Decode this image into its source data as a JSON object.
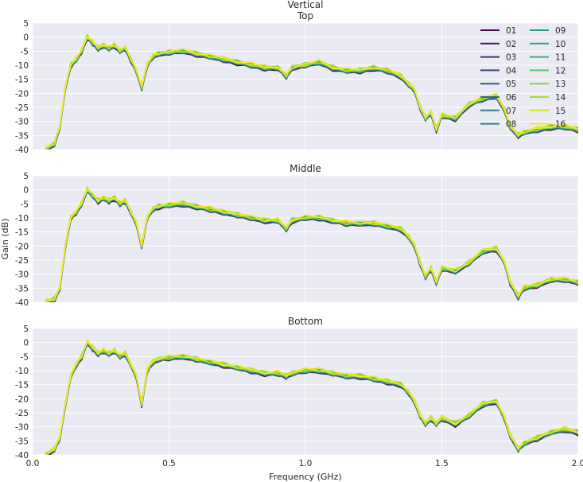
{
  "chart_data": {
    "type": "line",
    "suptitle": "Vertical",
    "xlabel": "Frequency (GHz)",
    "ylabel": "Gain (dB)",
    "xlim": [
      0.0,
      2.0
    ],
    "ylim": [
      -40,
      5
    ],
    "x_ticks": [
      "0.0",
      "0.5",
      "1.0",
      "1.5",
      "2.0"
    ],
    "x_tick_values": [
      0.0,
      0.5,
      1.0,
      1.5,
      2.0
    ],
    "y_ticks": [
      "5",
      "0",
      "-5",
      "-10",
      "-15",
      "-20",
      "-25",
      "-30",
      "-35",
      "-40"
    ],
    "y_tick_values": [
      5,
      0,
      -5,
      -10,
      -15,
      -20,
      -25,
      -30,
      -35,
      -40
    ],
    "grid": true,
    "legend": {
      "placement": "top-right",
      "columns": 2
    },
    "series_names": [
      "01",
      "02",
      "03",
      "04",
      "05",
      "06",
      "07",
      "08",
      "09",
      "10",
      "11",
      "12",
      "13",
      "14",
      "15",
      "16"
    ],
    "series_colors": [
      "#440154",
      "#481A6C",
      "#472F7D",
      "#414487",
      "#39568C",
      "#31688E",
      "#2A788E",
      "#23888E",
      "#1F988B",
      "#22A884",
      "#35B779",
      "#54C568",
      "#7AD151",
      "#A5DB36",
      "#D2E21B",
      "#FDE725"
    ],
    "panels": [
      {
        "title": "Top",
        "x": [
          0.05,
          0.08,
          0.1,
          0.12,
          0.14,
          0.16,
          0.18,
          0.2,
          0.22,
          0.24,
          0.26,
          0.28,
          0.3,
          0.32,
          0.34,
          0.36,
          0.38,
          0.4,
          0.42,
          0.44,
          0.46,
          0.5,
          0.55,
          0.6,
          0.65,
          0.7,
          0.75,
          0.8,
          0.85,
          0.9,
          0.93,
          0.95,
          1.0,
          1.05,
          1.1,
          1.15,
          1.2,
          1.25,
          1.3,
          1.35,
          1.38,
          1.4,
          1.42,
          1.44,
          1.46,
          1.48,
          1.5,
          1.55,
          1.6,
          1.65,
          1.7,
          1.73,
          1.75,
          1.78,
          1.8,
          1.85,
          1.9,
          1.95,
          2.0
        ],
        "y": [
          -40,
          -38,
          -32,
          -18,
          -10,
          -8,
          -5,
          0,
          -2,
          -4,
          -3,
          -4,
          -3,
          -5,
          -4,
          -8,
          -12,
          -18,
          -10,
          -7,
          -6,
          -5.5,
          -5,
          -6,
          -7,
          -8,
          -9,
          -10,
          -11,
          -11,
          -14,
          -11,
          -10,
          -9,
          -11,
          -12,
          -12,
          -11,
          -12,
          -14,
          -17,
          -19,
          -25,
          -29,
          -27,
          -33,
          -28,
          -29,
          -24,
          -22,
          -21,
          -26,
          -32,
          -35,
          -34,
          -33,
          -32,
          -32,
          -33
        ]
      },
      {
        "title": "Middle",
        "x": [
          0.05,
          0.08,
          0.1,
          0.12,
          0.14,
          0.16,
          0.18,
          0.2,
          0.22,
          0.24,
          0.26,
          0.28,
          0.3,
          0.32,
          0.34,
          0.36,
          0.38,
          0.4,
          0.42,
          0.44,
          0.46,
          0.5,
          0.55,
          0.6,
          0.65,
          0.7,
          0.75,
          0.8,
          0.85,
          0.9,
          0.93,
          0.95,
          1.0,
          1.05,
          1.1,
          1.15,
          1.2,
          1.25,
          1.3,
          1.35,
          1.38,
          1.4,
          1.42,
          1.44,
          1.46,
          1.48,
          1.5,
          1.55,
          1.6,
          1.65,
          1.7,
          1.73,
          1.75,
          1.78,
          1.8,
          1.85,
          1.9,
          1.95,
          2.0
        ],
        "y": [
          -40,
          -39,
          -35,
          -20,
          -10,
          -8,
          -5,
          0,
          -2,
          -4,
          -3,
          -4,
          -3,
          -5,
          -4,
          -8,
          -12,
          -20,
          -10,
          -7,
          -6,
          -5.5,
          -5,
          -6,
          -7,
          -8,
          -9,
          -10,
          -11,
          -11,
          -14,
          -11,
          -10,
          -10,
          -11,
          -12,
          -12,
          -12,
          -13,
          -14,
          -17,
          -20,
          -26,
          -31,
          -28,
          -33,
          -28,
          -29,
          -26,
          -22,
          -21,
          -26,
          -33,
          -38,
          -35,
          -34,
          -32,
          -32,
          -33
        ]
      },
      {
        "title": "Bottom",
        "x": [
          0.05,
          0.08,
          0.1,
          0.12,
          0.14,
          0.16,
          0.18,
          0.2,
          0.22,
          0.24,
          0.26,
          0.28,
          0.3,
          0.32,
          0.34,
          0.36,
          0.38,
          0.4,
          0.42,
          0.44,
          0.46,
          0.5,
          0.55,
          0.6,
          0.65,
          0.7,
          0.75,
          0.8,
          0.85,
          0.9,
          0.93,
          0.95,
          1.0,
          1.05,
          1.1,
          1.15,
          1.2,
          1.25,
          1.3,
          1.35,
          1.38,
          1.4,
          1.42,
          1.44,
          1.46,
          1.48,
          1.5,
          1.55,
          1.6,
          1.65,
          1.7,
          1.73,
          1.75,
          1.78,
          1.8,
          1.85,
          1.9,
          1.95,
          2.0
        ],
        "y": [
          -40,
          -38,
          -34,
          -22,
          -12,
          -8,
          -5,
          0,
          -2,
          -4,
          -3,
          -4,
          -3,
          -5,
          -4,
          -8,
          -12,
          -22,
          -10,
          -7,
          -6,
          -5.5,
          -5,
          -6,
          -7,
          -8,
          -9,
          -10,
          -11,
          -11,
          -12,
          -11,
          -10,
          -10,
          -11,
          -12,
          -12,
          -13,
          -14,
          -15,
          -18,
          -21,
          -26,
          -29,
          -27,
          -29,
          -27,
          -29,
          -26,
          -22,
          -21,
          -27,
          -33,
          -38,
          -36,
          -34,
          -32,
          -31,
          -32
        ]
      }
    ]
  }
}
